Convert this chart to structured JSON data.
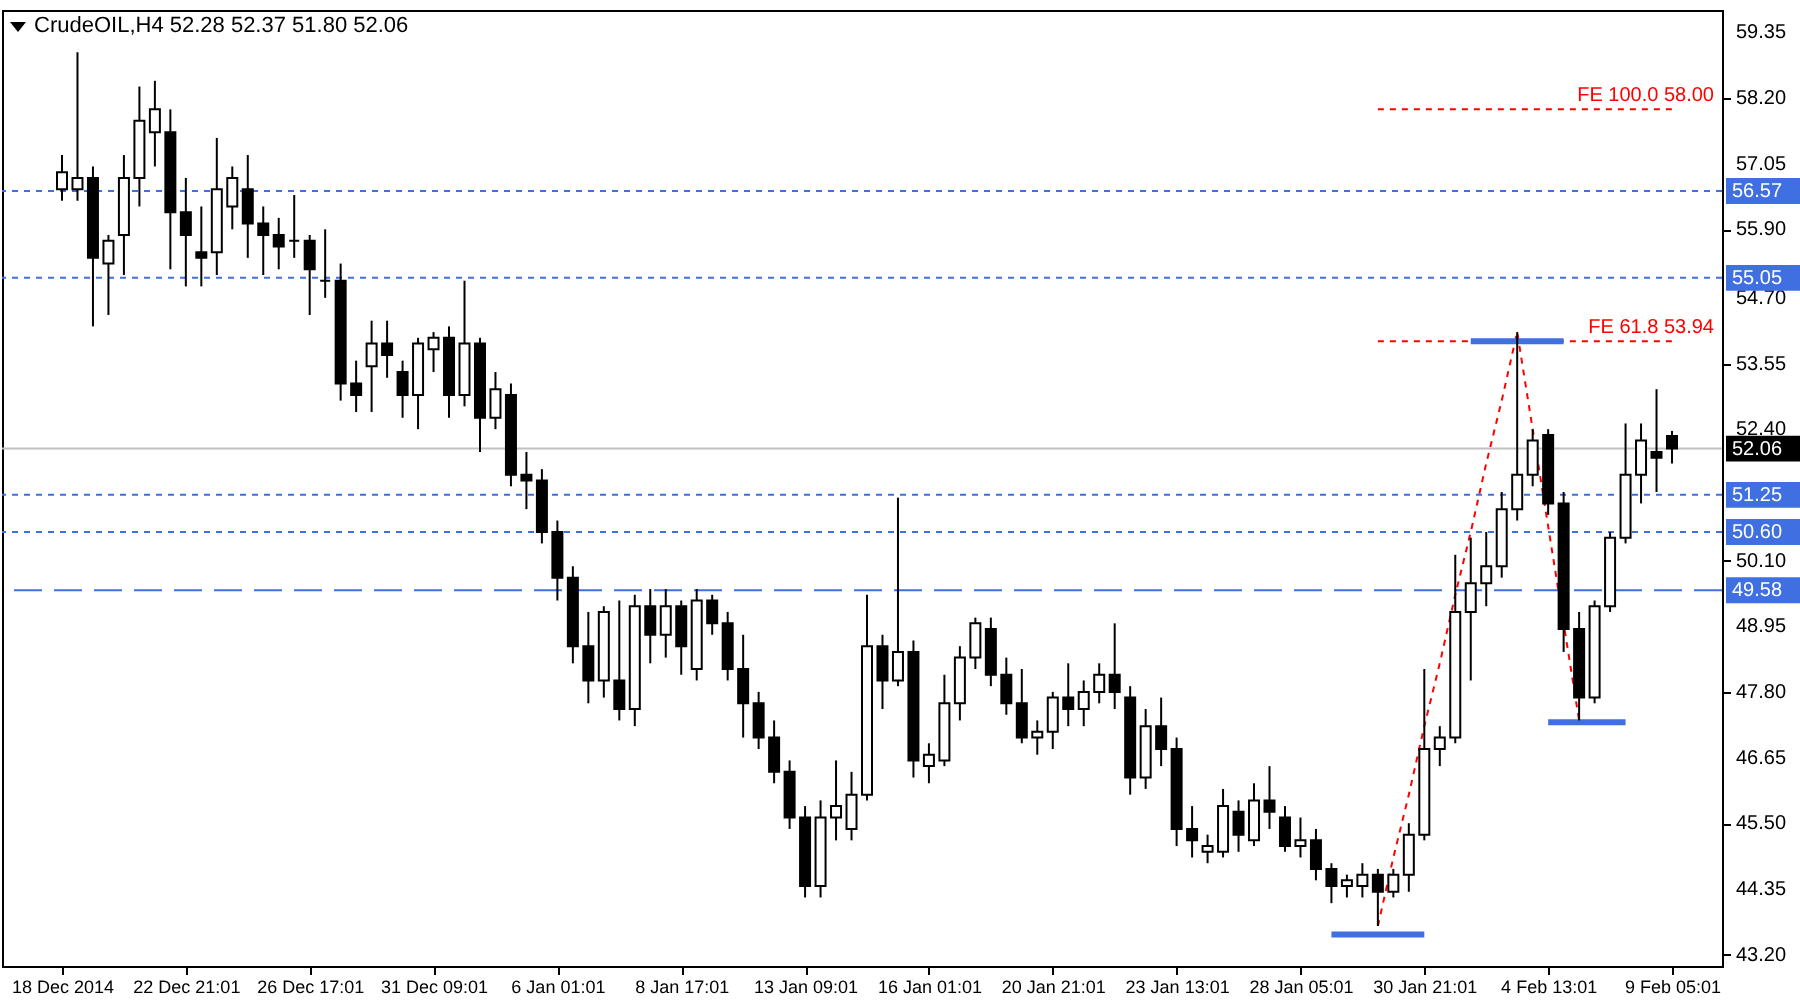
{
  "chart_data": {
    "type": "candlestick",
    "title": "CrudeOIL,H4 52.28 52.37 51.80 52.06",
    "categories": [
      "18 Dec 2014",
      null,
      null,
      null,
      null,
      null,
      null,
      null,
      "22 Dec 21:01",
      null,
      null,
      null,
      null,
      null,
      null,
      null,
      "26 Dec 17:01",
      null,
      null,
      null,
      null,
      null,
      null,
      null,
      "31 Dec 09:01",
      null,
      null,
      null,
      null,
      null,
      null,
      null,
      "6 Jan 01:01",
      null,
      null,
      null,
      null,
      null,
      null,
      null,
      "8 Jan 17:01",
      null,
      null,
      null,
      null,
      null,
      null,
      null,
      "13 Jan 09:01",
      null,
      null,
      null,
      null,
      null,
      null,
      null,
      "16 Jan 01:01",
      null,
      null,
      null,
      null,
      null,
      null,
      null,
      "20 Jan 21:01",
      null,
      null,
      null,
      null,
      null,
      null,
      null,
      "23 Jan 13:01",
      null,
      null,
      null,
      null,
      null,
      null,
      null,
      "28 Jan 05:01",
      null,
      null,
      null,
      null,
      null,
      null,
      null,
      "30 Jan 21:01",
      null,
      null,
      null,
      null,
      null,
      null,
      null,
      "4 Feb 13:01",
      null,
      null,
      null,
      null,
      null,
      null,
      null,
      "9 Feb 05:01"
    ],
    "ylim": [
      43.0,
      59.74
    ],
    "yticks": [
      59.35,
      {
        "value": 58.2,
        "label": "58.20"
      },
      57.05,
      {
        "value": 55.9,
        "label": "55.90"
      },
      {
        "value": 54.7,
        "label": "54.70"
      },
      53.55,
      {
        "value": 52.4,
        "label": "52.40"
      },
      {
        "value": 50.1,
        "label": "50.10"
      },
      48.95,
      {
        "value": 47.8,
        "label": "47.80"
      },
      46.65,
      {
        "value": 45.5,
        "label": "45.50"
      },
      44.35,
      {
        "value": 43.2,
        "label": "43.20"
      }
    ],
    "series": [
      {
        "color": "#000000",
        "ohlc": [
          [
            56.6,
            57.2,
            56.4,
            56.9
          ],
          [
            56.6,
            59.0,
            56.4,
            56.8
          ],
          [
            56.8,
            57.0,
            54.2,
            55.4
          ],
          [
            55.3,
            55.8,
            54.4,
            55.7
          ],
          [
            55.8,
            57.2,
            55.1,
            56.8
          ],
          [
            56.8,
            58.4,
            56.3,
            57.8
          ],
          [
            57.6,
            58.5,
            57.0,
            58.0
          ],
          [
            57.6,
            58.0,
            55.2,
            56.2
          ],
          [
            56.2,
            56.8,
            54.9,
            55.8
          ],
          [
            55.5,
            56.3,
            54.9,
            55.4
          ],
          [
            55.5,
            57.5,
            55.1,
            56.6
          ],
          [
            56.3,
            57.0,
            55.9,
            56.8
          ],
          [
            56.6,
            57.2,
            55.4,
            56.0
          ],
          [
            56.0,
            56.3,
            55.1,
            55.8
          ],
          [
            55.8,
            56.1,
            55.2,
            55.6
          ],
          [
            55.7,
            56.5,
            55.4,
            55.7
          ],
          [
            55.7,
            55.8,
            54.4,
            55.2
          ],
          [
            55.0,
            55.9,
            54.7,
            55.0
          ],
          [
            55.0,
            55.3,
            52.9,
            53.2
          ],
          [
            53.2,
            53.6,
            52.7,
            53.0
          ],
          [
            53.5,
            54.3,
            52.7,
            53.9
          ],
          [
            53.9,
            54.3,
            53.3,
            53.7
          ],
          [
            53.4,
            53.6,
            52.6,
            53.0
          ],
          [
            53.0,
            54.0,
            52.4,
            53.9
          ],
          [
            53.8,
            54.1,
            53.4,
            54.0
          ],
          [
            54.0,
            54.2,
            52.6,
            53.0
          ],
          [
            53.0,
            55.0,
            52.8,
            53.9
          ],
          [
            53.9,
            54.0,
            52.0,
            52.6
          ],
          [
            52.6,
            53.4,
            52.4,
            53.1
          ],
          [
            53.0,
            53.2,
            51.4,
            51.6
          ],
          [
            51.6,
            52.0,
            51.0,
            51.5
          ],
          [
            51.5,
            51.7,
            50.4,
            50.6
          ],
          [
            50.6,
            50.8,
            49.4,
            49.8
          ],
          [
            49.8,
            50.0,
            48.3,
            48.6
          ],
          [
            48.6,
            49.2,
            47.6,
            48.0
          ],
          [
            48.0,
            49.3,
            47.7,
            49.2
          ],
          [
            48.0,
            49.4,
            47.3,
            47.5
          ],
          [
            47.5,
            49.5,
            47.2,
            49.3
          ],
          [
            49.3,
            49.6,
            48.3,
            48.8
          ],
          [
            48.8,
            49.6,
            48.4,
            49.3
          ],
          [
            49.3,
            49.4,
            48.1,
            48.6
          ],
          [
            48.2,
            49.6,
            48.0,
            49.4
          ],
          [
            49.4,
            49.5,
            48.8,
            49.0
          ],
          [
            49.0,
            49.2,
            48.0,
            48.2
          ],
          [
            48.2,
            48.8,
            47.0,
            47.6
          ],
          [
            47.6,
            47.8,
            46.8,
            47.0
          ],
          [
            47.0,
            47.3,
            46.2,
            46.4
          ],
          [
            46.4,
            46.6,
            45.4,
            45.6
          ],
          [
            45.6,
            45.8,
            44.2,
            44.4
          ],
          [
            44.4,
            45.9,
            44.2,
            45.6
          ],
          [
            45.6,
            46.6,
            45.2,
            45.8
          ],
          [
            45.4,
            46.4,
            45.2,
            46.0
          ],
          [
            46.0,
            49.5,
            45.9,
            48.6
          ],
          [
            48.6,
            48.8,
            47.5,
            48.0
          ],
          [
            48.0,
            51.2,
            47.9,
            48.5
          ],
          [
            48.5,
            48.7,
            46.3,
            46.6
          ],
          [
            46.5,
            46.9,
            46.2,
            46.7
          ],
          [
            46.6,
            48.1,
            46.5,
            47.6
          ],
          [
            47.6,
            48.6,
            47.3,
            48.4
          ],
          [
            48.4,
            49.1,
            48.2,
            49.0
          ],
          [
            48.9,
            49.1,
            47.9,
            48.1
          ],
          [
            48.1,
            48.4,
            47.4,
            47.6
          ],
          [
            47.6,
            48.2,
            46.9,
            47.0
          ],
          [
            47.0,
            47.3,
            46.7,
            47.1
          ],
          [
            47.1,
            47.8,
            46.8,
            47.7
          ],
          [
            47.7,
            48.3,
            47.2,
            47.5
          ],
          [
            47.5,
            48.0,
            47.2,
            47.8
          ],
          [
            47.8,
            48.3,
            47.6,
            48.1
          ],
          [
            48.1,
            49.0,
            47.5,
            47.8
          ],
          [
            47.7,
            47.9,
            46.0,
            46.3
          ],
          [
            46.3,
            47.5,
            46.1,
            47.2
          ],
          [
            47.2,
            47.7,
            46.5,
            46.8
          ],
          [
            46.8,
            47.0,
            45.1,
            45.4
          ],
          [
            45.4,
            45.8,
            44.9,
            45.2
          ],
          [
            45.0,
            45.3,
            44.8,
            45.1
          ],
          [
            45.0,
            46.1,
            44.9,
            45.8
          ],
          [
            45.7,
            45.9,
            45.0,
            45.3
          ],
          [
            45.2,
            46.2,
            45.1,
            45.9
          ],
          [
            45.9,
            46.5,
            45.4,
            45.7
          ],
          [
            45.6,
            45.8,
            45.0,
            45.1
          ],
          [
            45.1,
            45.6,
            44.9,
            45.2
          ],
          [
            45.2,
            45.4,
            44.5,
            44.7
          ],
          [
            44.7,
            44.8,
            44.1,
            44.4
          ],
          [
            44.4,
            44.6,
            44.2,
            44.5
          ],
          [
            44.4,
            44.8,
            44.2,
            44.6
          ],
          [
            44.6,
            44.7,
            43.7,
            44.3
          ],
          [
            44.3,
            44.7,
            44.2,
            44.6
          ],
          [
            44.6,
            45.5,
            44.3,
            45.3
          ],
          [
            45.3,
            48.2,
            45.2,
            46.8
          ],
          [
            46.8,
            47.2,
            46.5,
            47.0
          ],
          [
            47.0,
            50.2,
            46.9,
            49.2
          ],
          [
            49.2,
            50.5,
            48.0,
            49.7
          ],
          [
            49.7,
            50.6,
            49.3,
            50.0
          ],
          [
            50.0,
            51.3,
            49.8,
            51.0
          ],
          [
            51.0,
            54.1,
            50.8,
            51.6
          ],
          [
            51.6,
            52.4,
            51.4,
            52.2
          ],
          [
            52.3,
            52.4,
            50.9,
            51.1
          ],
          [
            51.1,
            51.3,
            48.5,
            48.9
          ],
          [
            48.9,
            49.2,
            47.3,
            47.7
          ],
          [
            47.7,
            49.4,
            47.6,
            49.3
          ],
          [
            49.3,
            50.6,
            49.2,
            50.5
          ],
          [
            50.5,
            52.5,
            50.4,
            51.6
          ],
          [
            51.6,
            52.5,
            51.1,
            52.2
          ],
          [
            52.0,
            53.1,
            51.3,
            51.9
          ],
          [
            52.28,
            52.37,
            51.8,
            52.06
          ]
        ]
      },
      {
        "type": "line",
        "color": "#ff0000",
        "line_style": "dotted",
        "values": [
          null,
          null,
          null,
          null,
          null,
          null,
          null,
          null,
          null,
          null,
          null,
          null,
          null,
          null,
          null,
          null,
          null,
          null,
          null,
          null,
          null,
          null,
          null,
          null,
          null,
          null,
          null,
          null,
          null,
          null,
          null,
          null,
          null,
          null,
          null,
          null,
          null,
          null,
          null,
          null,
          null,
          null,
          null,
          null,
          null,
          null,
          null,
          null,
          null,
          null,
          null,
          null,
          null,
          null,
          null,
          null,
          null,
          null,
          null,
          null,
          null,
          null,
          null,
          null,
          null,
          null,
          null,
          null,
          null,
          null,
          null,
          null,
          null,
          null,
          null,
          null,
          null,
          null,
          null,
          null,
          null,
          null,
          null,
          null,
          null,
          43.7,
          44.9,
          46.0,
          47.2,
          48.3,
          49.5,
          50.6,
          51.8,
          52.9,
          54.1,
          52.4,
          50.7,
          49.0,
          47.3,
          null,
          null,
          null,
          null,
          null,
          null
        ]
      },
      {
        "type": "line",
        "color": "#ff0000",
        "line_style": "dotted",
        "values": [
          null,
          null,
          null,
          null,
          null,
          null,
          null,
          null,
          null,
          null,
          null,
          null,
          null,
          null,
          null,
          null,
          null,
          null,
          null,
          null,
          null,
          null,
          null,
          null,
          null,
          null,
          null,
          null,
          null,
          null,
          null,
          null,
          null,
          null,
          null,
          null,
          null,
          null,
          null,
          null,
          null,
          null,
          null,
          null,
          null,
          null,
          null,
          null,
          null,
          null,
          null,
          null,
          null,
          null,
          null,
          null,
          null,
          null,
          null,
          null,
          null,
          null,
          null,
          null,
          null,
          null,
          null,
          null,
          null,
          null,
          null,
          null,
          null,
          null,
          null,
          null,
          null,
          null,
          null,
          null,
          null,
          null,
          null,
          null,
          null,
          58.0,
          58.0,
          58.0,
          58.0,
          58.0,
          58.0,
          58.0,
          58.0,
          58.0,
          58.0,
          58.0,
          58.0,
          58.0,
          58.0,
          58.0,
          58.0,
          58.0,
          58.0,
          58.0,
          58.0
        ]
      },
      {
        "type": "line",
        "color": "#ff0000",
        "line_style": "dotted",
        "values": [
          null,
          null,
          null,
          null,
          null,
          null,
          null,
          null,
          null,
          null,
          null,
          null,
          null,
          null,
          null,
          null,
          null,
          null,
          null,
          null,
          null,
          null,
          null,
          null,
          null,
          null,
          null,
          null,
          null,
          null,
          null,
          null,
          null,
          null,
          null,
          null,
          null,
          null,
          null,
          null,
          null,
          null,
          null,
          null,
          null,
          null,
          null,
          null,
          null,
          null,
          null,
          null,
          null,
          null,
          null,
          null,
          null,
          null,
          null,
          null,
          null,
          null,
          null,
          null,
          null,
          null,
          null,
          null,
          null,
          null,
          null,
          null,
          null,
          null,
          null,
          null,
          null,
          null,
          null,
          null,
          null,
          null,
          null,
          null,
          null,
          53.94,
          53.94,
          53.94,
          53.94,
          53.94,
          53.94,
          53.94,
          53.94,
          53.94,
          53.94,
          53.94,
          53.94,
          53.94,
          53.94,
          53.94,
          53.94,
          53.94,
          53.94,
          53.94,
          53.94
        ]
      },
      {
        "type": "line",
        "color": "#3f6fe0",
        "line_style": "solid",
        "values": [
          null,
          null,
          null,
          null,
          null,
          null,
          null,
          null,
          null,
          null,
          null,
          null,
          null,
          null,
          null,
          null,
          null,
          null,
          null,
          null,
          null,
          null,
          null,
          null,
          null,
          null,
          null,
          null,
          null,
          null,
          null,
          null,
          null,
          null,
          null,
          null,
          null,
          null,
          null,
          null,
          null,
          null,
          null,
          null,
          null,
          null,
          null,
          null,
          null,
          null,
          null,
          null,
          null,
          null,
          null,
          null,
          null,
          null,
          null,
          null,
          null,
          null,
          null,
          null,
          null,
          null,
          null,
          null,
          null,
          null,
          null,
          null,
          null,
          null,
          null,
          null,
          null,
          null,
          null,
          null,
          null,
          null,
          43.55,
          43.55,
          43.55,
          43.55,
          43.55,
          43.55,
          43.55,
          null,
          null,
          null,
          null,
          null,
          null,
          null,
          null,
          null,
          null,
          null,
          null,
          null,
          null,
          null,
          null
        ]
      },
      {
        "type": "line",
        "color": "#3f6fe0",
        "line_style": "solid",
        "values": [
          null,
          null,
          null,
          null,
          null,
          null,
          null,
          null,
          null,
          null,
          null,
          null,
          null,
          null,
          null,
          null,
          null,
          null,
          null,
          null,
          null,
          null,
          null,
          null,
          null,
          null,
          null,
          null,
          null,
          null,
          null,
          null,
          null,
          null,
          null,
          null,
          null,
          null,
          null,
          null,
          null,
          null,
          null,
          null,
          null,
          null,
          null,
          null,
          null,
          null,
          null,
          null,
          null,
          null,
          null,
          null,
          null,
          null,
          null,
          null,
          null,
          null,
          null,
          null,
          null,
          null,
          null,
          null,
          null,
          null,
          null,
          null,
          null,
          null,
          null,
          null,
          null,
          null,
          null,
          null,
          null,
          null,
          null,
          null,
          null,
          null,
          null,
          null,
          null,
          null,
          null,
          53.94,
          53.94,
          53.94,
          53.94,
          53.94,
          53.94,
          53.94,
          null,
          null,
          null,
          null,
          null,
          null,
          null
        ]
      },
      {
        "type": "line",
        "color": "#3f6fe0",
        "line_style": "solid",
        "values": [
          null,
          null,
          null,
          null,
          null,
          null,
          null,
          null,
          null,
          null,
          null,
          null,
          null,
          null,
          null,
          null,
          null,
          null,
          null,
          null,
          null,
          null,
          null,
          null,
          null,
          null,
          null,
          null,
          null,
          null,
          null,
          null,
          null,
          null,
          null,
          null,
          null,
          null,
          null,
          null,
          null,
          null,
          null,
          null,
          null,
          null,
          null,
          null,
          null,
          null,
          null,
          null,
          null,
          null,
          null,
          null,
          null,
          null,
          null,
          null,
          null,
          null,
          null,
          null,
          null,
          null,
          null,
          null,
          null,
          null,
          null,
          null,
          null,
          null,
          null,
          null,
          null,
          null,
          null,
          null,
          null,
          null,
          null,
          null,
          null,
          null,
          null,
          null,
          null,
          null,
          null,
          null,
          null,
          null,
          null,
          null,
          47.27,
          47.27,
          47.27,
          47.27,
          47.27,
          47.27,
          null,
          null,
          null
        ]
      }
    ],
    "ref_lines": [
      {
        "axis": "y",
        "value": 56.57,
        "label": "56.57",
        "color": "#3f6fe0",
        "line_style": "dotted"
      },
      {
        "axis": "y",
        "value": 55.05,
        "label": "55.05",
        "color": "#3f6fe0",
        "line_style": "dotted"
      },
      {
        "axis": "y",
        "value": 52.06,
        "label": "52.06",
        "color": "#c0c0c0",
        "line_style": "solid"
      },
      {
        "axis": "y",
        "value": 51.25,
        "label": "51.25",
        "color": "#3f6fe0",
        "line_style": "dotted"
      },
      {
        "axis": "y",
        "value": 50.6,
        "label": "50.60",
        "color": "#3f6fe0",
        "line_style": "dotted"
      },
      {
        "axis": "y",
        "value": 49.58,
        "label": "49.58",
        "color": "#3f6fe0",
        "line_style": "dashed"
      }
    ],
    "annotations": [
      {
        "text": "FE 100.0 58.00",
        "y": 58.0
      },
      {
        "text": "FE 61.8 53.94",
        "y": 53.94
      }
    ]
  }
}
